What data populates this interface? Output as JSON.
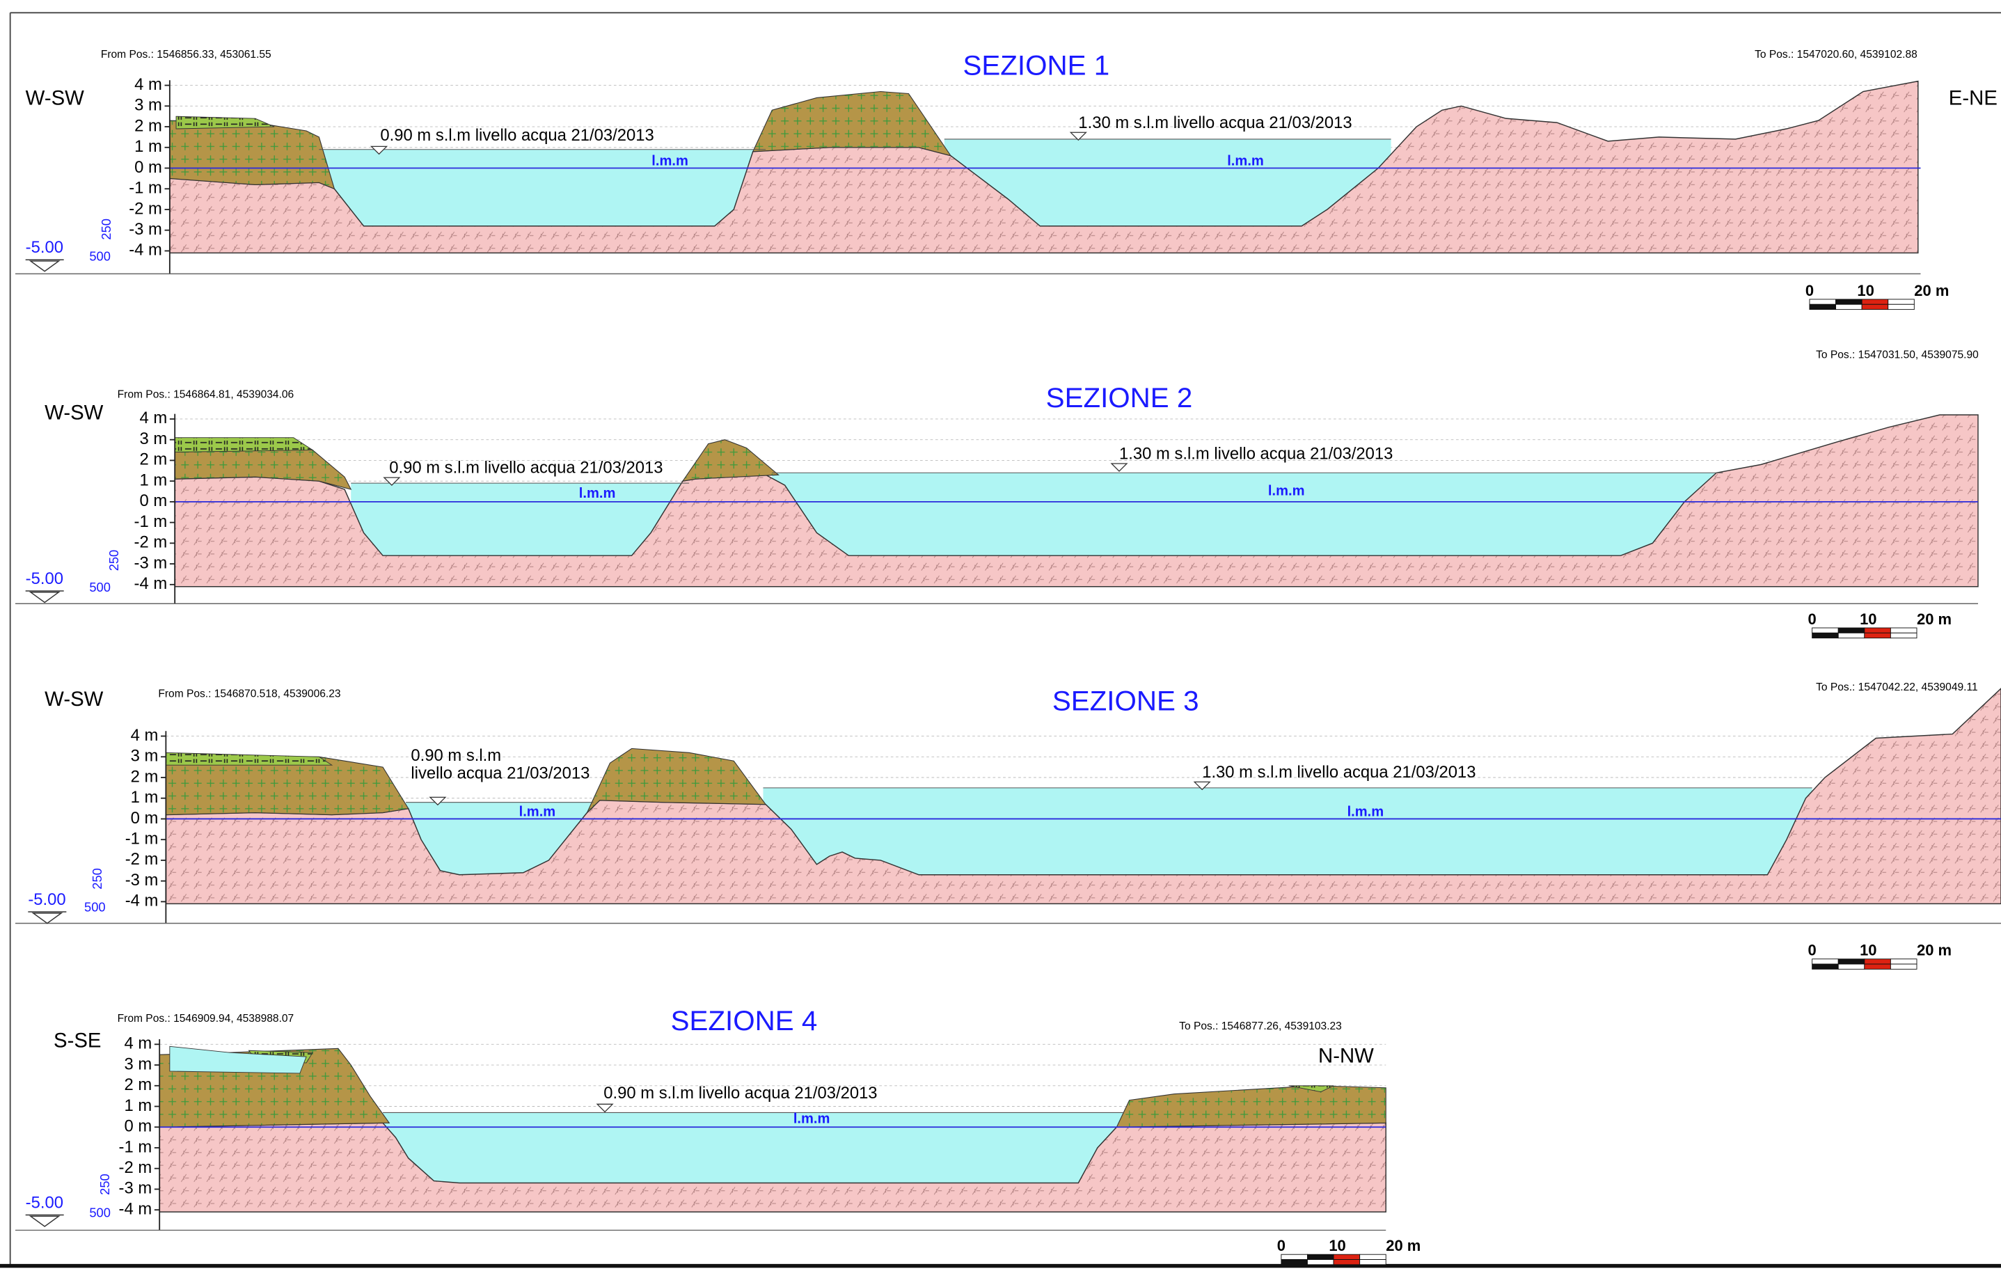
{
  "sections": [
    {
      "title": "SEZIONE 1",
      "from": "From Pos.: 1546856.33, 453061.55",
      "to": "To Pos.: 1547020.60, 4539102.88",
      "left": "W-SW",
      "right": "E-NE",
      "y_labels": [
        "4 m",
        "3 m",
        "2 m",
        "1 m",
        "0 m",
        "-1 m",
        "-2 m",
        "-3 m",
        "-4 m"
      ],
      "datum": "-5.00",
      "scale_v": "250",
      "scale_h": "500",
      "water_labels": [
        [
          "0.90 m s.l.m livello acqua 21/03/2013"
        ],
        [
          "1.30 m s.l.m livello acqua 21/03/2013"
        ]
      ],
      "lmm": [
        "l.m.m",
        "l.m.m"
      ],
      "scale_bar": [
        "0",
        "10",
        "20 m"
      ]
    },
    {
      "title": "SEZIONE 2",
      "from": "From Pos.: 1546864.81, 4539034.06",
      "to": "To Pos.: 1547031.50, 4539075.90",
      "left": "W-SW",
      "y_labels": [
        "4 m",
        "3 m",
        "2 m",
        "1 m",
        "0 m",
        "-1 m",
        "-2 m",
        "-3 m",
        "-4 m"
      ],
      "datum": "-5.00",
      "scale_v": "250",
      "scale_h": "500",
      "water_labels": [
        [
          "0.90 m s.l.m livello acqua 21/03/2013"
        ],
        [
          "1.30 m s.l.m livello acqua 21/03/2013"
        ]
      ],
      "lmm": [
        "l.m.m",
        "l.m.m"
      ],
      "scale_bar": [
        "0",
        "10",
        "20 m"
      ]
    },
    {
      "title": "SEZIONE 3",
      "from": "From Pos.: 1546870.518, 4539006.23",
      "to": "To Pos.: 1547042.22, 4539049.11",
      "left": "W-SW",
      "y_labels": [
        "4 m",
        "3 m",
        "2 m",
        "1 m",
        "0 m",
        "-1 m",
        "-2 m",
        "-3 m",
        "-4 m"
      ],
      "datum": "-5.00",
      "scale_v": "250",
      "scale_h": "500",
      "water_labels": [
        [
          "0.90 m s.l.m",
          "livello acqua 21/03/2013"
        ],
        [
          "1.30 m s.l.m livello acqua 21/03/2013"
        ]
      ],
      "lmm": [
        "l.m.m",
        "l.m.m"
      ],
      "scale_bar": [
        "0",
        "10",
        "20 m"
      ]
    },
    {
      "title": "SEZIONE 4",
      "from": "From Pos.: 1546909.94, 4538988.07",
      "to": "To Pos.: 1546877.26, 4539103.23",
      "left": "S-SE",
      "right": "N-NW",
      "y_labels": [
        "4 m",
        "3 m",
        "2 m",
        "1 m",
        "0 m",
        "-1 m",
        "-2 m",
        "-3 m",
        "-4 m"
      ],
      "datum": "-5.00",
      "scale_v": "250",
      "scale_h": "500",
      "water_labels": [
        [
          "0.90 m s.l.m livello acqua 21/03/2013"
        ]
      ],
      "lmm": [
        "l.m.m"
      ],
      "scale_bar": [
        "0",
        "10",
        "20 m"
      ]
    }
  ]
}
